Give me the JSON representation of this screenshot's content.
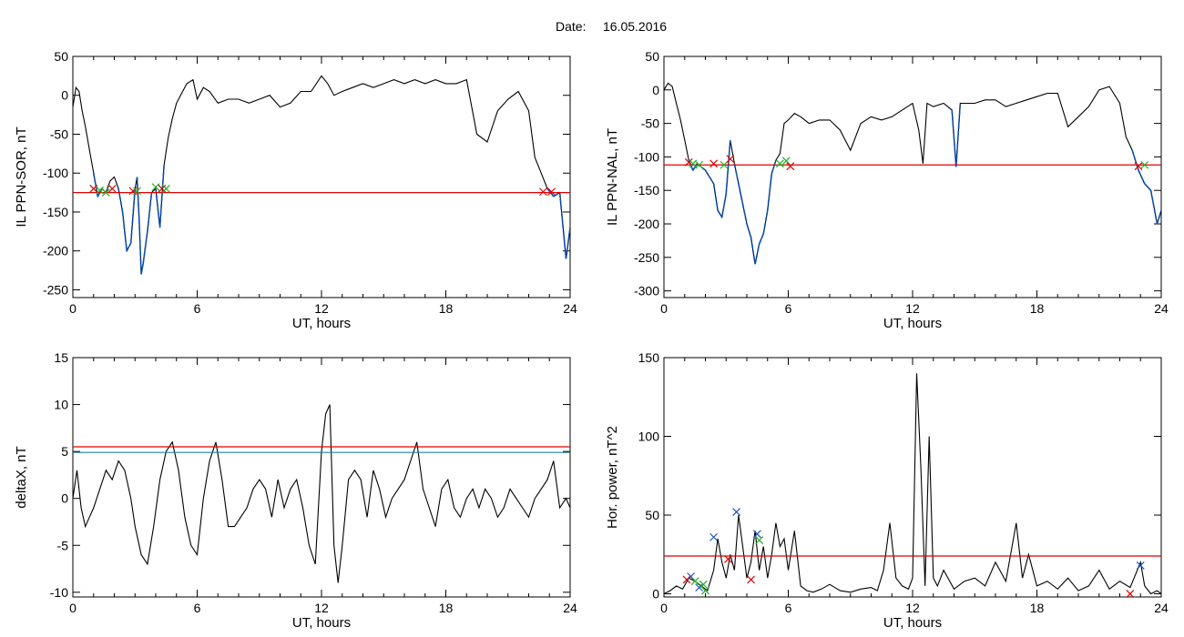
{
  "header": {
    "date_label": "Date:",
    "date_value": "16.05.2016"
  },
  "colors": {
    "curve": "#000000",
    "below_threshold": "#0050c8",
    "threshold": "#e00000",
    "threshold2": "#2080a0",
    "mark_red": "#e00000",
    "mark_green": "#20b020",
    "mark_blue": "#2050c0",
    "frame": "#000000"
  },
  "chart_data": [
    {
      "type": "line",
      "xlabel": "UT, hours",
      "ylabel": "IL PPN-SOR, nT",
      "xlim": [
        0,
        24
      ],
      "ylim": [
        -260,
        50
      ],
      "xticks": [
        0,
        6,
        12,
        18,
        24
      ],
      "yticks": [
        50,
        0,
        -50,
        -100,
        -150,
        -200,
        -250
      ],
      "threshold": -125,
      "series": [
        {
          "x": [
            0,
            0.15,
            0.3,
            0.45,
            0.6,
            0.8,
            1.0,
            1.2,
            1.4,
            1.6,
            1.8,
            2.0,
            2.2,
            2.4,
            2.6,
            2.8,
            3.0,
            3.1,
            3.2,
            3.3,
            3.4,
            3.6,
            3.8,
            4.0,
            4.2,
            4.4,
            4.6,
            4.8,
            5.0,
            5.2,
            5.5,
            5.8,
            6.0,
            6.3,
            6.6,
            7.0,
            7.5,
            8.0,
            8.5,
            9.0,
            9.5,
            10.0,
            10.5,
            11.0,
            11.5,
            12.0,
            12.3,
            12.6,
            13.0,
            13.5,
            14.0,
            14.5,
            15.0,
            15.5,
            16.0,
            16.5,
            17.0,
            17.5,
            18.0,
            18.5,
            19.0,
            19.5,
            20.0,
            20.5,
            21.0,
            21.5,
            22.0,
            22.3,
            22.6,
            22.9,
            23.2,
            23.5,
            23.8,
            24.0
          ],
          "y": [
            -15,
            10,
            5,
            -20,
            -40,
            -70,
            -100,
            -130,
            -120,
            -125,
            -110,
            -105,
            -120,
            -150,
            -200,
            -190,
            -120,
            -105,
            -160,
            -230,
            -215,
            -175,
            -125,
            -120,
            -170,
            -90,
            -55,
            -30,
            -10,
            0,
            15,
            20,
            -5,
            10,
            5,
            -10,
            -5,
            -5,
            -10,
            -5,
            0,
            -15,
            -10,
            5,
            5,
            25,
            15,
            0,
            5,
            10,
            15,
            10,
            15,
            20,
            15,
            20,
            15,
            20,
            15,
            15,
            20,
            -50,
            -60,
            -20,
            -5,
            5,
            -20,
            -80,
            -100,
            -120,
            -130,
            -125,
            -210,
            -170
          ]
        }
      ],
      "marks": [
        {
          "x": 1.0,
          "y": -120,
          "color": "red"
        },
        {
          "x": 1.3,
          "y": -122,
          "color": "green"
        },
        {
          "x": 1.6,
          "y": -125,
          "color": "green"
        },
        {
          "x": 1.9,
          "y": -120,
          "color": "red"
        },
        {
          "x": 2.9,
          "y": -123,
          "color": "red"
        },
        {
          "x": 3.1,
          "y": -123,
          "color": "green"
        },
        {
          "x": 4.0,
          "y": -118,
          "color": "green"
        },
        {
          "x": 4.3,
          "y": -120,
          "color": "red"
        },
        {
          "x": 4.5,
          "y": -120,
          "color": "green"
        },
        {
          "x": 22.7,
          "y": -124,
          "color": "red"
        },
        {
          "x": 23.1,
          "y": -124,
          "color": "red"
        }
      ]
    },
    {
      "type": "line",
      "xlabel": "UT, hours",
      "ylabel": "IL PPN-NAL, nT",
      "xlim": [
        0,
        24
      ],
      "ylim": [
        -310,
        50
      ],
      "xticks": [
        0,
        6,
        12,
        18,
        24
      ],
      "yticks": [
        50,
        0,
        -50,
        -100,
        -150,
        -200,
        -250,
        -300
      ],
      "threshold": -112,
      "series": [
        {
          "x": [
            0,
            0.2,
            0.4,
            0.6,
            0.8,
            1.0,
            1.2,
            1.4,
            1.6,
            1.8,
            2.0,
            2.2,
            2.4,
            2.6,
            2.8,
            3.0,
            3.2,
            3.4,
            3.6,
            3.8,
            4.0,
            4.2,
            4.4,
            4.6,
            4.8,
            5.0,
            5.2,
            5.4,
            5.6,
            5.8,
            6.0,
            6.3,
            6.6,
            7.0,
            7.5,
            8.0,
            8.5,
            9.0,
            9.5,
            10.0,
            10.5,
            11.0,
            11.5,
            12.0,
            12.3,
            12.5,
            12.7,
            13.0,
            13.5,
            13.9,
            14.1,
            14.3,
            15.0,
            15.5,
            16.0,
            16.5,
            17.0,
            17.5,
            18.0,
            18.5,
            19.0,
            19.5,
            20.0,
            20.5,
            21.0,
            21.5,
            22.0,
            22.3,
            22.6,
            22.9,
            23.2,
            23.5,
            23.8,
            24.0
          ],
          "y": [
            0,
            10,
            5,
            -20,
            -45,
            -75,
            -105,
            -120,
            -110,
            -115,
            -120,
            -130,
            -140,
            -180,
            -190,
            -155,
            -75,
            -110,
            -140,
            -170,
            -200,
            -220,
            -260,
            -230,
            -215,
            -180,
            -125,
            -105,
            -95,
            -50,
            -45,
            -35,
            -40,
            -50,
            -45,
            -45,
            -60,
            -90,
            -50,
            -40,
            -45,
            -40,
            -30,
            -20,
            -60,
            -110,
            -20,
            -25,
            -20,
            -30,
            -115,
            -20,
            -20,
            -15,
            -15,
            -25,
            -20,
            -15,
            -10,
            -5,
            -5,
            -55,
            -40,
            -25,
            0,
            5,
            -20,
            -70,
            -90,
            -120,
            -140,
            -150,
            -200,
            -180
          ]
        }
      ],
      "marks": [
        {
          "x": 1.2,
          "y": -108,
          "color": "red"
        },
        {
          "x": 1.4,
          "y": -110,
          "color": "green"
        },
        {
          "x": 1.7,
          "y": -112,
          "color": "green"
        },
        {
          "x": 2.4,
          "y": -110,
          "color": "red"
        },
        {
          "x": 2.9,
          "y": -112,
          "color": "green"
        },
        {
          "x": 3.2,
          "y": -103,
          "color": "red"
        },
        {
          "x": 5.6,
          "y": -110,
          "color": "green"
        },
        {
          "x": 5.9,
          "y": -106,
          "color": "green"
        },
        {
          "x": 6.1,
          "y": -114,
          "color": "red"
        },
        {
          "x": 22.9,
          "y": -114,
          "color": "red"
        },
        {
          "x": 23.2,
          "y": -112,
          "color": "green"
        }
      ]
    },
    {
      "type": "line",
      "xlabel": "UT, hours",
      "ylabel": "deltaX, nT",
      "xlim": [
        0,
        24
      ],
      "ylim": [
        -10.5,
        15
      ],
      "xticks": [
        0,
        6,
        12,
        18,
        24
      ],
      "yticks": [
        15,
        10,
        5,
        0,
        -5,
        -10
      ],
      "thresholds": [
        5.5,
        4.9
      ],
      "series": [
        {
          "x": [
            0,
            0.2,
            0.4,
            0.6,
            0.8,
            1.0,
            1.3,
            1.6,
            1.9,
            2.2,
            2.5,
            2.8,
            3.0,
            3.3,
            3.6,
            3.9,
            4.2,
            4.5,
            4.8,
            5.1,
            5.4,
            5.7,
            6.0,
            6.3,
            6.6,
            6.9,
            7.2,
            7.5,
            7.8,
            8.1,
            8.4,
            8.7,
            9.0,
            9.3,
            9.6,
            9.9,
            10.2,
            10.5,
            10.8,
            11.1,
            11.4,
            11.7,
            12.0,
            12.2,
            12.4,
            12.6,
            12.8,
            13.0,
            13.3,
            13.6,
            13.9,
            14.2,
            14.5,
            14.8,
            15.1,
            15.4,
            15.7,
            16.0,
            16.3,
            16.6,
            16.9,
            17.2,
            17.5,
            17.8,
            18.1,
            18.4,
            18.7,
            19.0,
            19.3,
            19.6,
            19.9,
            20.2,
            20.5,
            20.8,
            21.1,
            21.4,
            21.7,
            22.0,
            22.3,
            22.6,
            22.9,
            23.2,
            23.5,
            23.8,
            24.0
          ],
          "y": [
            0,
            3,
            -1,
            -3,
            -2,
            -1,
            1,
            3,
            2,
            4,
            3,
            0,
            -3,
            -6,
            -7,
            -3,
            2,
            5,
            6,
            3,
            -2,
            -5,
            -6,
            0,
            4,
            6,
            2,
            -3,
            -3,
            -2,
            -1,
            1,
            2,
            1,
            -2,
            2,
            -1,
            1,
            2,
            -1,
            -5,
            -7,
            5,
            9,
            10,
            -5,
            -9,
            -5,
            2,
            3,
            2,
            -2,
            3,
            1,
            -2,
            0,
            1,
            2,
            4,
            6,
            1,
            -1,
            -3,
            1,
            2,
            -1,
            -2,
            0,
            1,
            -1,
            1,
            0,
            -2,
            -1,
            1,
            0,
            -1,
            -2,
            0,
            1,
            2,
            4,
            -1,
            0,
            -1
          ]
        }
      ]
    },
    {
      "type": "line",
      "xlabel": "UT, hours",
      "ylabel": "Hor. power, nT^2",
      "xlim": [
        0,
        24
      ],
      "ylim": [
        -2,
        150
      ],
      "xticks": [
        0,
        6,
        12,
        18,
        24
      ],
      "yticks": [
        150,
        100,
        50,
        0
      ],
      "threshold": 24,
      "series": [
        {
          "x": [
            0,
            0.3,
            0.6,
            0.9,
            1.2,
            1.5,
            1.8,
            2.1,
            2.4,
            2.6,
            2.8,
            3.0,
            3.2,
            3.4,
            3.6,
            3.8,
            4.0,
            4.2,
            4.4,
            4.6,
            4.8,
            5.0,
            5.2,
            5.4,
            5.6,
            5.8,
            6.0,
            6.3,
            6.6,
            6.9,
            7.2,
            7.6,
            8.0,
            8.5,
            9.0,
            9.5,
            10.0,
            10.3,
            10.6,
            10.9,
            11.2,
            11.5,
            11.8,
            12.0,
            12.2,
            12.4,
            12.6,
            12.8,
            13.0,
            13.2,
            13.5,
            14.0,
            14.5,
            15.0,
            15.5,
            16.0,
            16.5,
            17.0,
            17.3,
            17.6,
            18.0,
            18.5,
            19.0,
            19.5,
            20.0,
            20.5,
            21.0,
            21.5,
            22.0,
            22.5,
            23.0,
            23.2,
            23.5,
            23.8,
            24.0
          ],
          "y": [
            0,
            2,
            5,
            3,
            10,
            8,
            5,
            2,
            15,
            35,
            20,
            10,
            25,
            15,
            50,
            30,
            10,
            20,
            40,
            15,
            30,
            10,
            25,
            45,
            30,
            35,
            15,
            40,
            5,
            2,
            1,
            3,
            6,
            2,
            1,
            3,
            4,
            2,
            15,
            45,
            10,
            5,
            3,
            10,
            140,
            80,
            5,
            100,
            10,
            5,
            15,
            3,
            8,
            10,
            5,
            20,
            8,
            45,
            10,
            25,
            5,
            8,
            3,
            10,
            2,
            5,
            15,
            3,
            8,
            4,
            20,
            5,
            0,
            2,
            0
          ]
        }
      ],
      "marks": [
        {
          "x": 1.1,
          "y": 9,
          "color": "red"
        },
        {
          "x": 1.3,
          "y": 11,
          "color": "blue"
        },
        {
          "x": 1.5,
          "y": 8,
          "color": "green"
        },
        {
          "x": 1.7,
          "y": 4,
          "color": "blue"
        },
        {
          "x": 1.9,
          "y": 6,
          "color": "green"
        },
        {
          "x": 2.0,
          "y": 2,
          "color": "green"
        },
        {
          "x": 2.4,
          "y": 36,
          "color": "blue"
        },
        {
          "x": 3.1,
          "y": 22,
          "color": "red"
        },
        {
          "x": 3.5,
          "y": 52,
          "color": "blue"
        },
        {
          "x": 4.2,
          "y": 9,
          "color": "red"
        },
        {
          "x": 4.5,
          "y": 38,
          "color": "blue"
        },
        {
          "x": 4.6,
          "y": 34,
          "color": "green"
        },
        {
          "x": 23.0,
          "y": 18,
          "color": "blue"
        },
        {
          "x": 22.5,
          "y": 0,
          "color": "red"
        }
      ]
    }
  ]
}
